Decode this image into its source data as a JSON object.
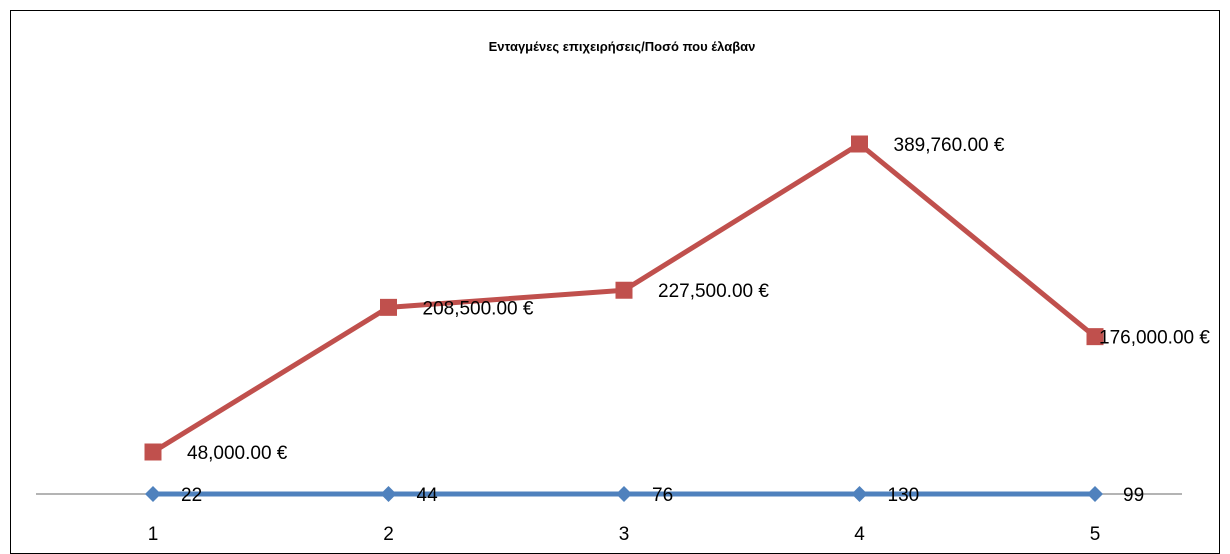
{
  "chart_data": {
    "type": "line",
    "title": "Ενταγμένες επιχειρήσεις/Ποσό που έλαβαν",
    "xlabel": "",
    "ylabel": "",
    "categories": [
      "1",
      "2",
      "3",
      "4",
      "5"
    ],
    "grid": false,
    "legend": "none",
    "series": [
      {
        "values": [
          22,
          44,
          76,
          130,
          99
        ],
        "labels": [
          "22",
          "44",
          "76",
          "130",
          "99"
        ],
        "color": "#4F81BD",
        "marker": "diamond"
      },
      {
        "values": [
          48000,
          208500,
          227500,
          389760,
          176000
        ],
        "labels": [
          "48,000.00 €",
          "208,500.00 €",
          "227,500.00 €",
          "389,760.00 €",
          "176,000.00 €"
        ],
        "color": "#C0504D",
        "marker": "square"
      }
    ],
    "ylim": [
      0,
      420000
    ]
  }
}
